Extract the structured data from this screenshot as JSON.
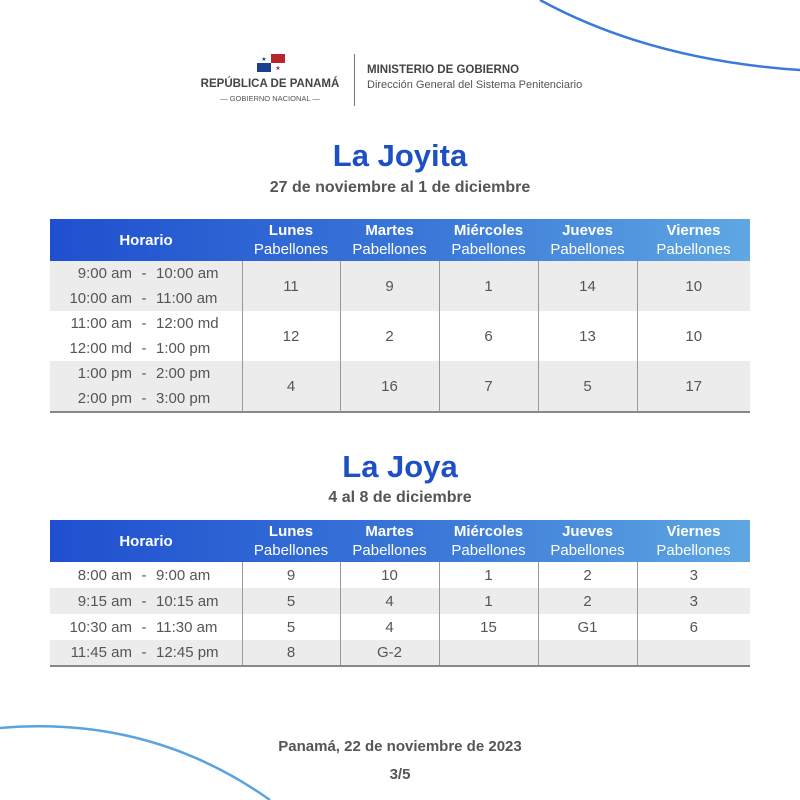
{
  "header": {
    "republic": "REPÚBLICA DE PANAMÁ",
    "government": "— GOBIERNO NACIONAL —",
    "ministry": "MINISTERIO DE GOBIERNO",
    "directorate": "Dirección General del Sistema Penitenciario"
  },
  "colors": {
    "accent": "#1f4fc4",
    "header_gradient_start": "#1f4fcf",
    "header_gradient_end": "#5fa8e2",
    "row_gray": "#ececec"
  },
  "columns": {
    "horario": "Horario",
    "days": [
      "Lunes",
      "Martes",
      "Miércoles",
      "Jueves",
      "Viernes"
    ],
    "sub": "Pabellones"
  },
  "section1": {
    "title": "La Joyita",
    "dates": "27 de noviembre al 1 de diciembre",
    "rows": [
      {
        "times": [
          [
            "9:00 am",
            "10:00 am"
          ],
          [
            "10:00 am",
            "11:00 am"
          ]
        ],
        "values": [
          "11",
          "9",
          "1",
          "14",
          "10"
        ]
      },
      {
        "times": [
          [
            "11:00 am",
            "12:00 md"
          ],
          [
            "12:00 md",
            "1:00 pm"
          ]
        ],
        "values": [
          "12",
          "2",
          "6",
          "13",
          "10"
        ]
      },
      {
        "times": [
          [
            "1:00 pm",
            "2:00 pm"
          ],
          [
            "2:00 pm",
            "3:00 pm"
          ]
        ],
        "values": [
          "4",
          "16",
          "7",
          "5",
          "17"
        ]
      }
    ]
  },
  "section2": {
    "title": "La Joya",
    "dates": "4 al 8 de diciembre",
    "rows": [
      {
        "start": "8:00 am",
        "end": "9:00 am",
        "values": [
          "9",
          "10",
          "1",
          "2",
          "3"
        ]
      },
      {
        "start": "9:15 am",
        "end": "10:15 am",
        "values": [
          "5",
          "4",
          "1",
          "2",
          "3"
        ]
      },
      {
        "start": "10:30 am",
        "end": "11:30 am",
        "values": [
          "5",
          "4",
          "15",
          "G1",
          "6"
        ]
      },
      {
        "start": "11:45 am",
        "end": "12:45 pm",
        "values": [
          "8",
          "G-2",
          "",
          "",
          ""
        ]
      }
    ]
  },
  "footer": {
    "place_date": "Panamá, 22 de noviembre de 2023",
    "page": "3/5"
  }
}
